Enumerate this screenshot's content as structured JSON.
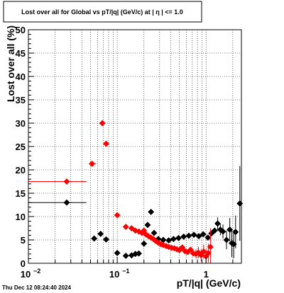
{
  "timestamp": "Thu Dec 12 08:24:40 2024",
  "colors": {
    "series_black": "#000000",
    "series_red": "#ff0000",
    "grid": "#000000",
    "frame": "#000000"
  },
  "chart_data": {
    "type": "scatter",
    "title": "Lost over all for Global vs pT/|q| (GeV/c) at |  η  | <= 1.0",
    "xlabel": "pT/|q| (GeV/c)",
    "ylabel": "Lost over all (%)",
    "xscale": "log",
    "xlim": [
      0.01,
      2.5
    ],
    "ylim": [
      0,
      50
    ],
    "grid": true,
    "x_ticks": [
      {
        "base": "10",
        "exp": "−2",
        "value": 0.01
      },
      {
        "base": "10",
        "exp": "−1",
        "value": 0.1
      },
      {
        "base": "1",
        "exp": "",
        "value": 1
      }
    ],
    "y_ticks": [
      "0",
      "5",
      "10",
      "15",
      "20",
      "25",
      "30",
      "35",
      "40",
      "45",
      "50"
    ],
    "y_tick_values": [
      0,
      5,
      10,
      15,
      20,
      25,
      30,
      35,
      40,
      45,
      50
    ],
    "series": [
      {
        "color": "#000000",
        "points": [
          {
            "x": 0.027,
            "y": 13.0,
            "xlo": 0.01,
            "xhi": 0.045
          },
          {
            "x": 0.055,
            "y": 5.3
          },
          {
            "x": 0.065,
            "y": 6.3
          },
          {
            "x": 0.075,
            "y": 5.1
          },
          {
            "x": 0.1,
            "y": 2.2,
            "xlo": 0.095,
            "xhi": 0.105
          },
          {
            "x": 0.125,
            "y": 1.6
          },
          {
            "x": 0.145,
            "y": 1.7
          },
          {
            "x": 0.16,
            "y": 2.0
          },
          {
            "x": 0.175,
            "y": 2.1
          },
          {
            "x": 0.2,
            "y": 4.2
          },
          {
            "x": 0.22,
            "y": 8.2
          },
          {
            "x": 0.24,
            "y": 11.0
          },
          {
            "x": 0.26,
            "y": 6.5
          },
          {
            "x": 0.29,
            "y": 5.2
          },
          {
            "x": 0.33,
            "y": 5.0
          },
          {
            "x": 0.38,
            "y": 4.9
          },
          {
            "x": 0.43,
            "y": 5.2
          },
          {
            "x": 0.49,
            "y": 5.4
          },
          {
            "x": 0.56,
            "y": 5.7
          },
          {
            "x": 0.64,
            "y": 5.9
          },
          {
            "x": 0.73,
            "y": 6.1
          },
          {
            "x": 0.83,
            "y": 5.8
          },
          {
            "x": 0.93,
            "y": 6.2
          },
          {
            "x": 1.05,
            "y": 5.5
          },
          {
            "x": 1.15,
            "y": 6.4
          },
          {
            "x": 1.25,
            "y": 7.0
          },
          {
            "x": 1.35,
            "y": 8.5,
            "yerr": 1.3
          },
          {
            "x": 1.45,
            "y": 7.2,
            "yerr": 1.2
          },
          {
            "x": 1.55,
            "y": 6.8,
            "yerr": 1.5
          },
          {
            "x": 1.7,
            "y": 5.0,
            "yerr": 2.0
          },
          {
            "x": 1.85,
            "y": 7.2,
            "yerr": 2.5
          },
          {
            "x": 1.95,
            "y": 4.3,
            "yerr": 3.0
          },
          {
            "x": 2.05,
            "y": 4.1,
            "yerr": 3.0
          },
          {
            "x": 2.15,
            "y": 6.7,
            "yerr": 3.5
          },
          {
            "x": 2.4,
            "y": 12.8,
            "yerr": 8.0
          }
        ]
      },
      {
        "color": "#ff0000",
        "points": [
          {
            "x": 0.027,
            "y": 17.5,
            "xlo": 0.01,
            "xhi": 0.045
          },
          {
            "x": 0.052,
            "y": 21.3,
            "xlo": 0.048,
            "xhi": 0.058
          },
          {
            "x": 0.068,
            "y": 30.0
          },
          {
            "x": 0.075,
            "y": 25.6
          },
          {
            "x": 0.1,
            "y": 10.3,
            "xlo": 0.095,
            "xhi": 0.105
          },
          {
            "x": 0.125,
            "y": 7.8
          },
          {
            "x": 0.145,
            "y": 7.5
          },
          {
            "x": 0.16,
            "y": 7.0
          },
          {
            "x": 0.175,
            "y": 6.8
          },
          {
            "x": 0.19,
            "y": 6.5
          },
          {
            "x": 0.2,
            "y": 7.0
          },
          {
            "x": 0.21,
            "y": 6.2
          },
          {
            "x": 0.225,
            "y": 5.8
          },
          {
            "x": 0.24,
            "y": 5.5
          },
          {
            "x": 0.255,
            "y": 5.2
          },
          {
            "x": 0.27,
            "y": 4.8
          },
          {
            "x": 0.29,
            "y": 4.4
          },
          {
            "x": 0.31,
            "y": 4.1
          },
          {
            "x": 0.33,
            "y": 3.9
          },
          {
            "x": 0.355,
            "y": 3.7
          },
          {
            "x": 0.38,
            "y": 3.5
          },
          {
            "x": 0.41,
            "y": 3.3
          },
          {
            "x": 0.44,
            "y": 3.2
          },
          {
            "x": 0.47,
            "y": 3.0
          },
          {
            "x": 0.5,
            "y": 2.8
          },
          {
            "x": 0.54,
            "y": 3.4
          },
          {
            "x": 0.58,
            "y": 2.6
          },
          {
            "x": 0.62,
            "y": 2.4
          },
          {
            "x": 0.67,
            "y": 2.9
          },
          {
            "x": 0.72,
            "y": 2.1
          },
          {
            "x": 0.77,
            "y": 2.0,
            "yerr": 1.0
          },
          {
            "x": 0.82,
            "y": 2.3,
            "yerr": 1.2
          },
          {
            "x": 0.88,
            "y": 1.7,
            "yerr": 1.3
          },
          {
            "x": 0.94,
            "y": 2.5,
            "yerr": 1.5
          },
          {
            "x": 1.0,
            "y": 1.5,
            "yerr": 1.5
          },
          {
            "x": 1.06,
            "y": 2.2,
            "yerr": 2.0
          },
          {
            "x": 1.12,
            "y": 3.5,
            "yerr": 4.0
          }
        ]
      }
    ]
  }
}
